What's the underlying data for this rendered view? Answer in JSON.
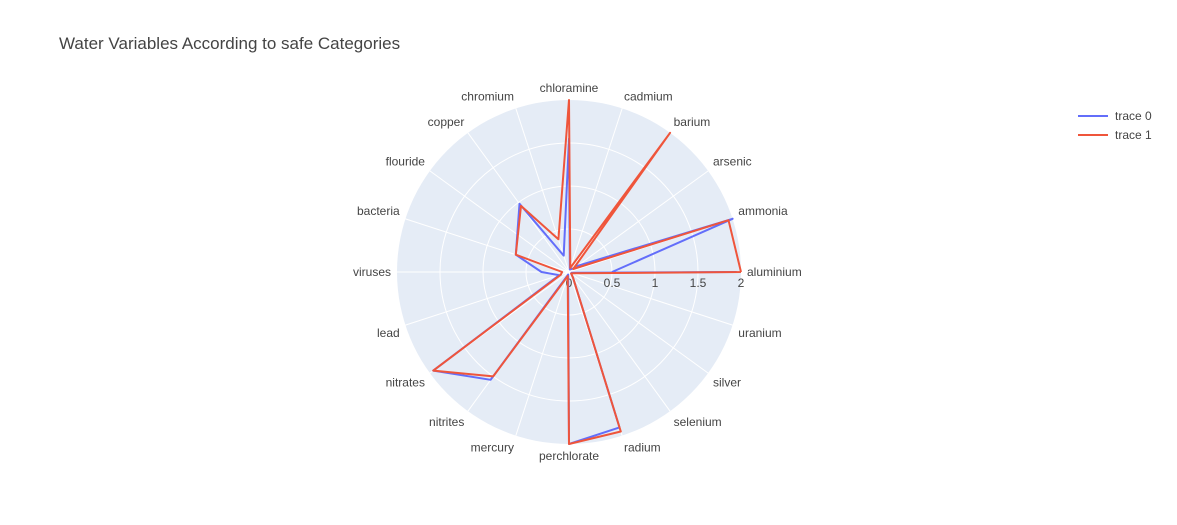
{
  "chart_data": {
    "type": "line",
    "polar": true,
    "title": "Water Variables According to safe Categories",
    "theta": [
      "aluminium",
      "ammonia",
      "arsenic",
      "barium",
      "cadmium",
      "chloramine",
      "chromium",
      "copper",
      "flouride",
      "bacteria",
      "viruses",
      "lead",
      "nitrates",
      "nitrites",
      "mercury",
      "perchlorate",
      "radium",
      "selenium",
      "silver",
      "uranium"
    ],
    "radial_range": [
      0,
      2
    ],
    "radial_ticks": [
      0,
      0.5,
      1,
      1.5,
      2
    ],
    "legend_position": "top-right",
    "grid": true,
    "series": [
      {
        "name": "trace 0",
        "color": "#636EFA",
        "closed": false,
        "points": [
          {
            "theta": "aluminium",
            "r": 0.5
          },
          {
            "theta": "ammonia",
            "r": 2.0
          },
          {
            "theta": "arsenic",
            "r": 0.12
          },
          {
            "theta": "ammonia",
            "r": 2.0
          },
          {
            "theta": "cadmium",
            "r": 0.03
          },
          {
            "theta": "chloramine",
            "r": 1.55
          },
          {
            "theta": "chromium",
            "r": 0.2
          },
          {
            "theta": "copper",
            "r": 0.98
          },
          {
            "theta": "bacteria",
            "r": 0.65
          },
          {
            "theta": "viruses",
            "r": 0.32
          },
          {
            "theta": "lead",
            "r": 0.12
          },
          {
            "theta": "nitrates",
            "r": 1.95
          },
          {
            "theta": "nitrites",
            "r": 1.55
          },
          {
            "theta": "mercury",
            "r": 0.03
          },
          {
            "theta": "perchlorate",
            "r": 2.0
          },
          {
            "theta": "radium",
            "r": 1.9
          },
          {
            "theta": "selenium",
            "r": 0.08
          },
          {
            "theta": "silver",
            "r": 0.03
          },
          {
            "theta": "uranium",
            "r": 0.03
          },
          {
            "theta": "aluminium",
            "r": 1.95
          }
        ]
      },
      {
        "name": "trace 1",
        "color": "#EF553B",
        "closed": false,
        "points": [
          {
            "theta": "aluminium",
            "r": 2.0
          },
          {
            "theta": "ammonia",
            "r": 1.95
          },
          {
            "theta": "arsenic",
            "r": 0.06
          },
          {
            "theta": "barium",
            "r": 2.0
          },
          {
            "theta": "cadmium",
            "r": 0.05
          },
          {
            "theta": "chloramine",
            "r": 2.0
          },
          {
            "theta": "chromium",
            "r": 0.4
          },
          {
            "theta": "copper",
            "r": 0.95
          },
          {
            "theta": "bacteria",
            "r": 0.65
          },
          {
            "theta": "viruses",
            "r": 0.08
          },
          {
            "theta": "lead",
            "r": 0.1
          },
          {
            "theta": "nitrates",
            "r": 1.95
          },
          {
            "theta": "nitrites",
            "r": 1.5
          },
          {
            "theta": "mercury",
            "r": 0.05
          },
          {
            "theta": "perchlorate",
            "r": 2.0
          },
          {
            "theta": "radium",
            "r": 1.95
          },
          {
            "theta": "selenium",
            "r": 0.08
          },
          {
            "theta": "silver",
            "r": 0.03
          },
          {
            "theta": "uranium",
            "r": 0.05
          },
          {
            "theta": "aluminium",
            "r": 2.0
          }
        ]
      }
    ]
  }
}
